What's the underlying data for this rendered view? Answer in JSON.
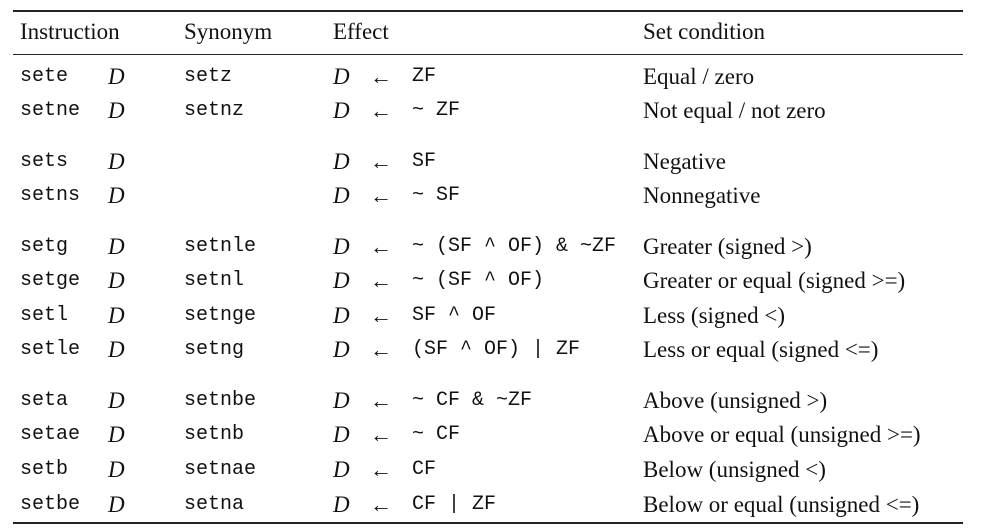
{
  "table": {
    "headers": {
      "instruction": "Instruction",
      "synonym": "Synonym",
      "effect": "Effect",
      "set_condition": "Set condition"
    },
    "rows": [
      {
        "instruction": "sete",
        "operand": "D",
        "synonym": "setz",
        "dest": "D",
        "arrow": "←",
        "expression": "ZF",
        "condition": "Equal / zero"
      },
      {
        "instruction": "setne",
        "operand": "D",
        "synonym": "setnz",
        "dest": "D",
        "arrow": "←",
        "expression": "~ ZF",
        "condition": "Not equal / not zero"
      },
      {
        "instruction": "sets",
        "operand": "D",
        "synonym": "",
        "dest": "D",
        "arrow": "←",
        "expression": "SF",
        "condition": "Negative"
      },
      {
        "instruction": "setns",
        "operand": "D",
        "synonym": "",
        "dest": "D",
        "arrow": "←",
        "expression": "~ SF",
        "condition": "Nonnegative"
      },
      {
        "instruction": "setg",
        "operand": "D",
        "synonym": "setnle",
        "dest": "D",
        "arrow": "←",
        "expression": "~ (SF ^ OF) & ~ZF",
        "condition": "Greater (signed >)"
      },
      {
        "instruction": "setge",
        "operand": "D",
        "synonym": "setnl",
        "dest": "D",
        "arrow": "←",
        "expression": "~ (SF ^ OF)",
        "condition": "Greater or equal (signed >=)"
      },
      {
        "instruction": "setl",
        "operand": "D",
        "synonym": "setnge",
        "dest": "D",
        "arrow": "←",
        "expression": "SF ^ OF",
        "condition": "Less (signed <)"
      },
      {
        "instruction": "setle",
        "operand": "D",
        "synonym": "setng",
        "dest": "D",
        "arrow": "←",
        "expression": "(SF ^ OF) | ZF",
        "condition": "Less or equal (signed <=)"
      },
      {
        "instruction": "seta",
        "operand": "D",
        "synonym": "setnbe",
        "dest": "D",
        "arrow": "←",
        "expression": "~ CF & ~ZF",
        "condition": "Above (unsigned >)"
      },
      {
        "instruction": "setae",
        "operand": "D",
        "synonym": "setnb",
        "dest": "D",
        "arrow": "←",
        "expression": "~ CF",
        "condition": "Above or equal (unsigned >=)"
      },
      {
        "instruction": "setb",
        "operand": "D",
        "synonym": "setnae",
        "dest": "D",
        "arrow": "←",
        "expression": "CF",
        "condition": "Below (unsigned <)"
      },
      {
        "instruction": "setbe",
        "operand": "D",
        "synonym": "setna",
        "dest": "D",
        "arrow": "←",
        "expression": "CF | ZF",
        "condition": "Below or equal (unsigned <=)"
      }
    ]
  }
}
